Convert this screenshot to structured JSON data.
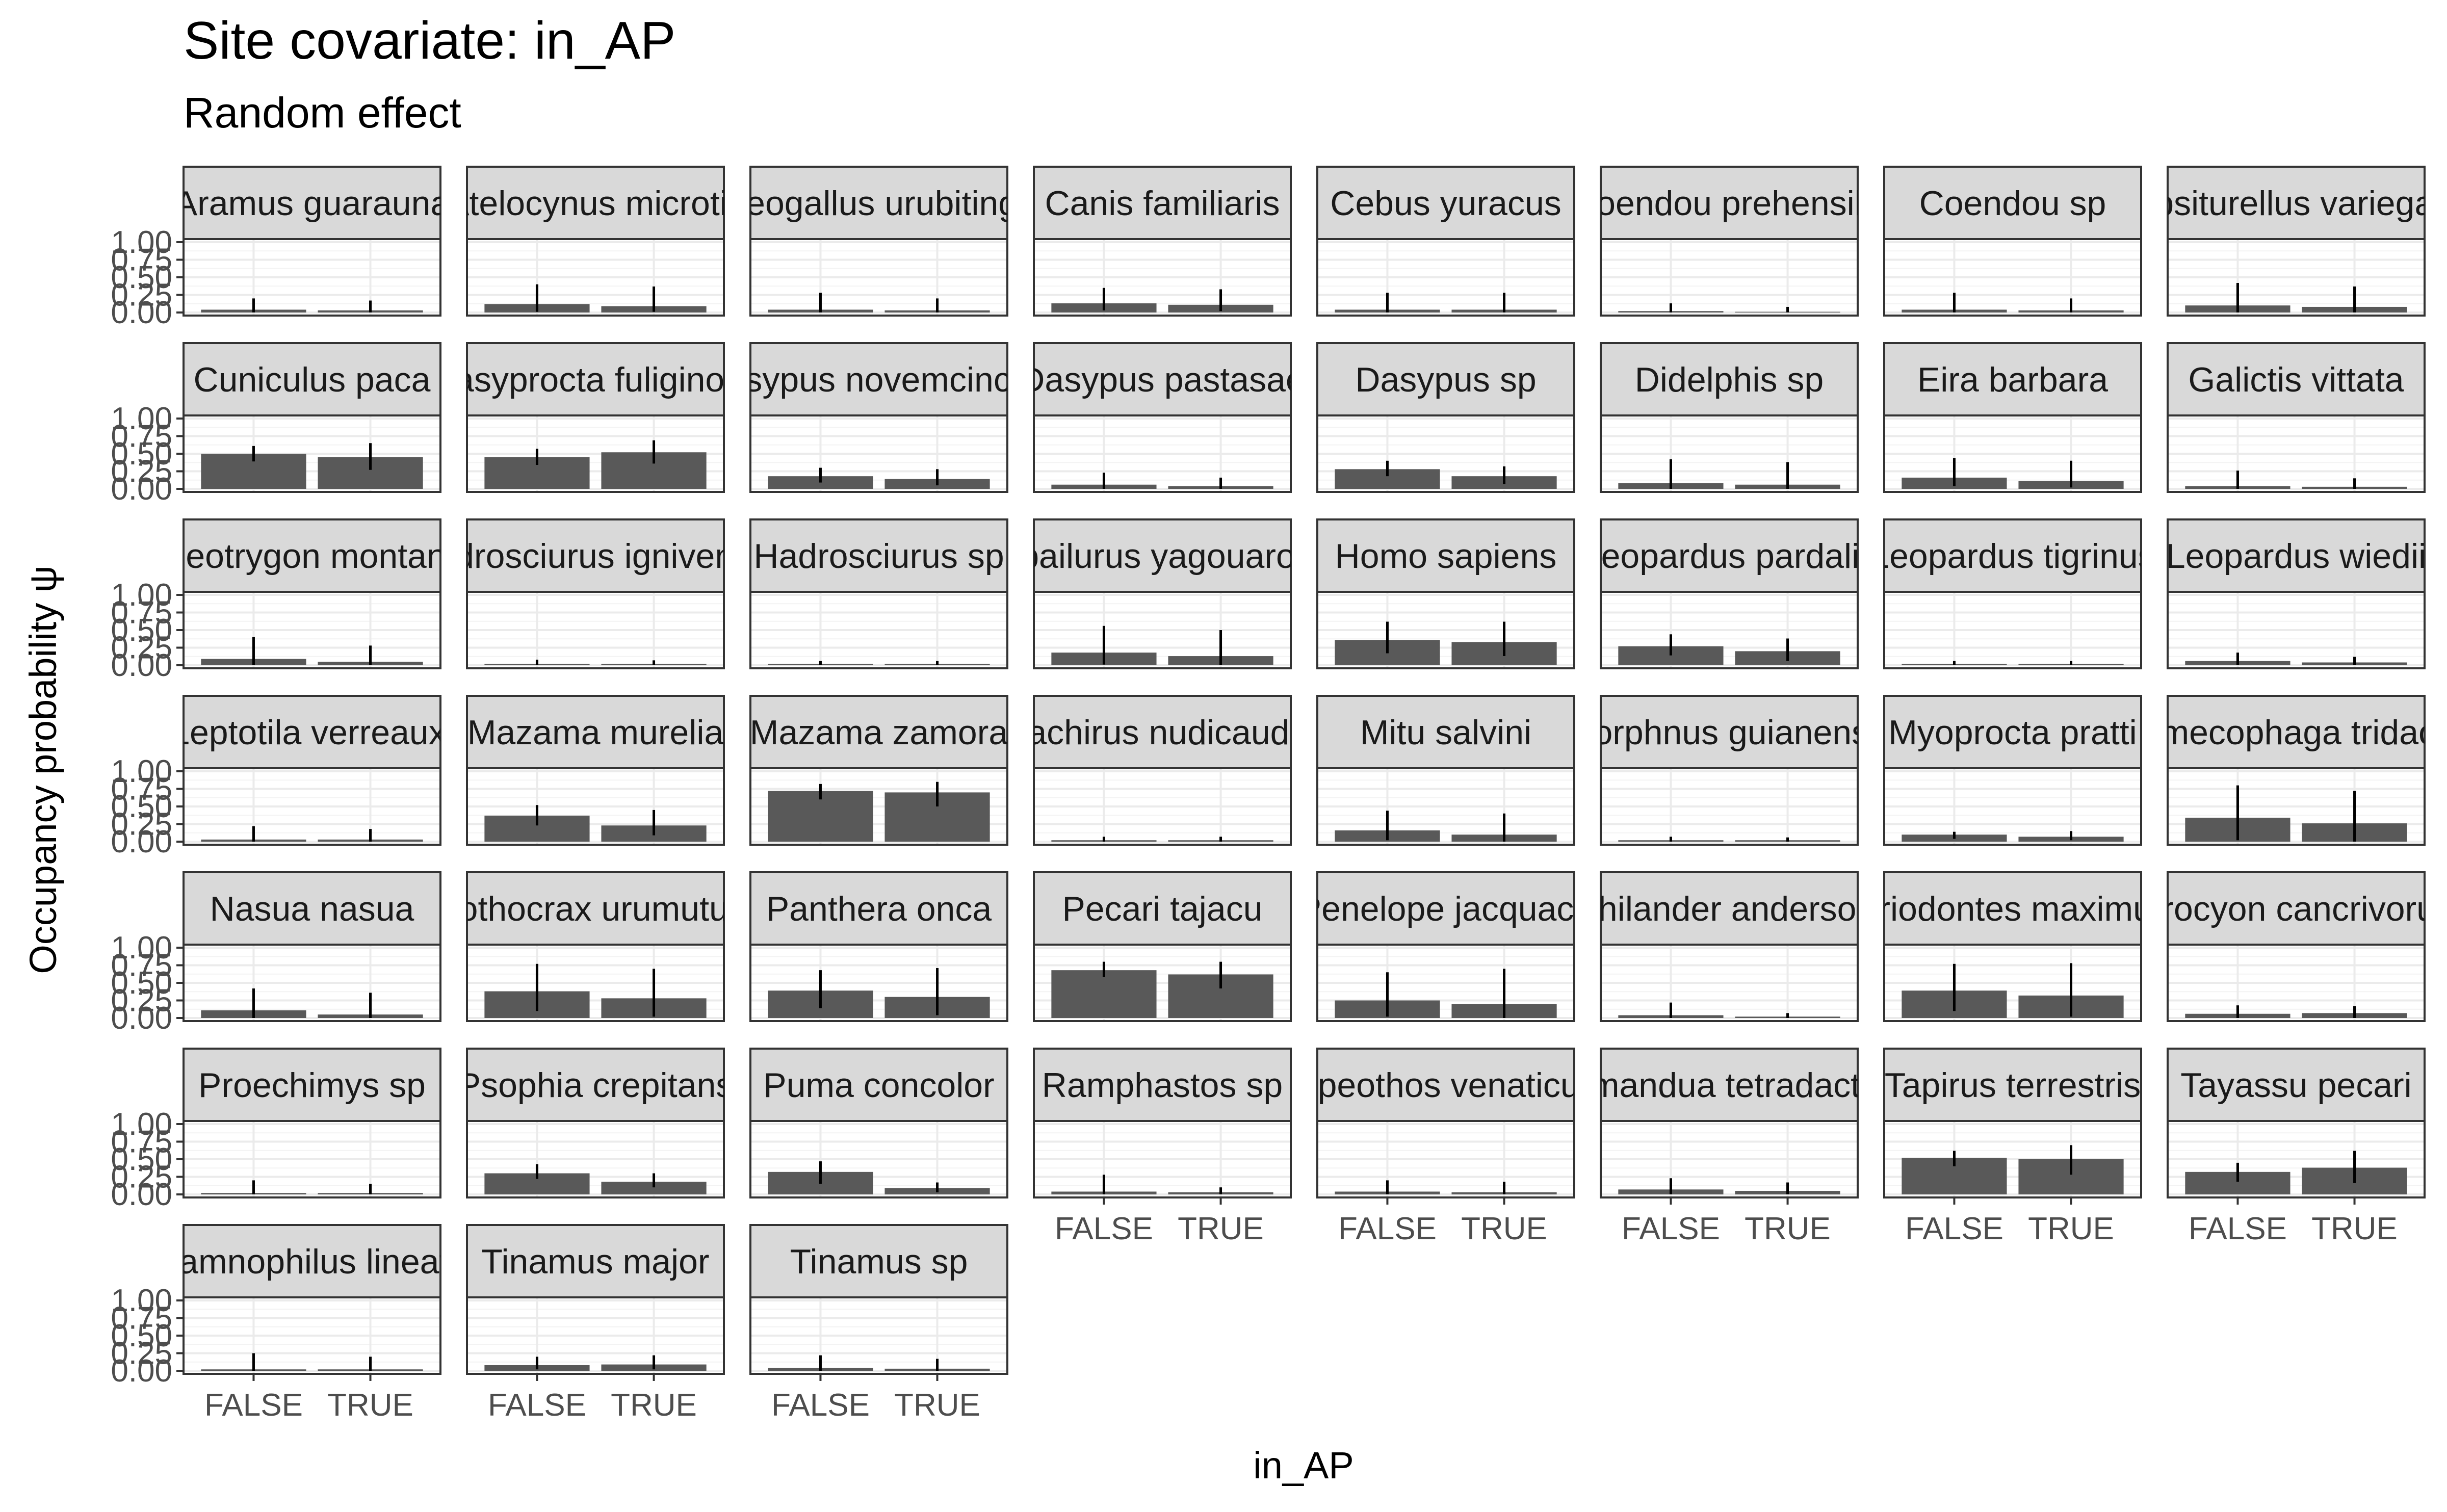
{
  "chart_data": {
    "type": "bar",
    "title": "Site covariate: in_AP",
    "subtitle": "Random effect",
    "xlabel": "in_AP",
    "ylabel": "Occupancy probability  ψ",
    "categories": [
      "FALSE",
      "TRUE"
    ],
    "yticks": [
      "0.00",
      "0.25",
      "0.50",
      "0.75",
      "1.00"
    ],
    "ylim": [
      0,
      1
    ],
    "grid": true,
    "error_bars": true,
    "facets": [
      {
        "label": "Aramus guarauna",
        "values": [
          0.04,
          0.03
        ],
        "lower": [
          0.0,
          0.0
        ],
        "upper": [
          0.2,
          0.17
        ]
      },
      {
        "label": "Atelocynus microtis",
        "values": [
          0.12,
          0.09
        ],
        "lower": [
          0.01,
          0.01
        ],
        "upper": [
          0.4,
          0.37
        ]
      },
      {
        "label": "Neogallus urubitinga",
        "values": [
          0.04,
          0.03
        ],
        "lower": [
          0.0,
          0.0
        ],
        "upper": [
          0.28,
          0.2
        ]
      },
      {
        "label": "Canis familiaris",
        "values": [
          0.13,
          0.11
        ],
        "lower": [
          0.03,
          0.02
        ],
        "upper": [
          0.35,
          0.33
        ]
      },
      {
        "label": "Cebus yuracus",
        "values": [
          0.04,
          0.04
        ],
        "lower": [
          0.0,
          0.0
        ],
        "upper": [
          0.28,
          0.28
        ]
      },
      {
        "label": "Coendou prehensilis",
        "values": [
          0.02,
          0.01
        ],
        "lower": [
          0.0,
          0.0
        ],
        "upper": [
          0.13,
          0.08
        ]
      },
      {
        "label": "Coendou sp",
        "values": [
          0.04,
          0.03
        ],
        "lower": [
          0.0,
          0.0
        ],
        "upper": [
          0.28,
          0.2
        ]
      },
      {
        "label": "Eupsiturellus variegatus",
        "values": [
          0.1,
          0.08
        ],
        "lower": [
          0.0,
          0.0
        ],
        "upper": [
          0.42,
          0.37
        ]
      },
      {
        "label": "Cuniculus paca",
        "values": [
          0.5,
          0.45
        ],
        "lower": [
          0.39,
          0.27
        ],
        "upper": [
          0.61,
          0.65
        ]
      },
      {
        "label": "Dasyprocta fuliginosa",
        "values": [
          0.45,
          0.52
        ],
        "lower": [
          0.34,
          0.36
        ],
        "upper": [
          0.57,
          0.69
        ]
      },
      {
        "label": "Dasypus novemcinctus",
        "values": [
          0.18,
          0.14
        ],
        "lower": [
          0.09,
          0.05
        ],
        "upper": [
          0.3,
          0.28
        ]
      },
      {
        "label": "Dasypus pastasae",
        "values": [
          0.06,
          0.04
        ],
        "lower": [
          0.0,
          0.0
        ],
        "upper": [
          0.23,
          0.16
        ]
      },
      {
        "label": "Dasypus sp",
        "values": [
          0.28,
          0.18
        ],
        "lower": [
          0.18,
          0.07
        ],
        "upper": [
          0.4,
          0.32
        ]
      },
      {
        "label": "Didelphis sp",
        "values": [
          0.08,
          0.06
        ],
        "lower": [
          0.0,
          0.0
        ],
        "upper": [
          0.42,
          0.38
        ]
      },
      {
        "label": "Eira barbara",
        "values": [
          0.16,
          0.11
        ],
        "lower": [
          0.04,
          0.02
        ],
        "upper": [
          0.44,
          0.4
        ]
      },
      {
        "label": "Galictis vittata",
        "values": [
          0.04,
          0.03
        ],
        "lower": [
          0.0,
          0.0
        ],
        "upper": [
          0.26,
          0.15
        ]
      },
      {
        "label": "Geotrygon montana",
        "values": [
          0.09,
          0.05
        ],
        "lower": [
          0.0,
          0.0
        ],
        "upper": [
          0.4,
          0.28
        ]
      },
      {
        "label": "Hadrosciurus igniventris",
        "values": [
          0.02,
          0.02
        ],
        "lower": [
          0.0,
          0.0
        ],
        "upper": [
          0.08,
          0.07
        ]
      },
      {
        "label": "Hadrosciurus sp",
        "values": [
          0.02,
          0.02
        ],
        "lower": [
          0.0,
          0.0
        ],
        "upper": [
          0.06,
          0.06
        ]
      },
      {
        "label": "Herpailurus yagouaroundi",
        "values": [
          0.18,
          0.13
        ],
        "lower": [
          0.01,
          0.0
        ],
        "upper": [
          0.56,
          0.5
        ]
      },
      {
        "label": "Homo sapiens",
        "values": [
          0.36,
          0.33
        ],
        "lower": [
          0.17,
          0.13
        ],
        "upper": [
          0.62,
          0.62
        ]
      },
      {
        "label": "Leopardus pardalis",
        "values": [
          0.27,
          0.2
        ],
        "lower": [
          0.14,
          0.06
        ],
        "upper": [
          0.44,
          0.38
        ]
      },
      {
        "label": "Leopardus tigrinus",
        "values": [
          0.02,
          0.02
        ],
        "lower": [
          0.0,
          0.0
        ],
        "upper": [
          0.06,
          0.06
        ]
      },
      {
        "label": "Leopardus wiedii",
        "values": [
          0.06,
          0.04
        ],
        "lower": [
          0.0,
          0.0
        ],
        "upper": [
          0.18,
          0.12
        ]
      },
      {
        "label": "Leptotila verreauxi",
        "values": [
          0.03,
          0.03
        ],
        "lower": [
          0.0,
          0.0
        ],
        "upper": [
          0.22,
          0.18
        ]
      },
      {
        "label": "Mazama murelia",
        "values": [
          0.37,
          0.23
        ],
        "lower": [
          0.23,
          0.09
        ],
        "upper": [
          0.52,
          0.45
        ]
      },
      {
        "label": "Mazama zamora",
        "values": [
          0.72,
          0.7
        ],
        "lower": [
          0.6,
          0.5
        ],
        "upper": [
          0.82,
          0.85
        ]
      },
      {
        "label": "Metachirus nudicaudatus",
        "values": [
          0.02,
          0.02
        ],
        "lower": [
          0.0,
          0.0
        ],
        "upper": [
          0.07,
          0.07
        ]
      },
      {
        "label": "Mitu salvini",
        "values": [
          0.16,
          0.1
        ],
        "lower": [
          0.02,
          0.0
        ],
        "upper": [
          0.44,
          0.4
        ]
      },
      {
        "label": "Morphnus guianensis",
        "values": [
          0.02,
          0.02
        ],
        "lower": [
          0.0,
          0.0
        ],
        "upper": [
          0.07,
          0.06
        ]
      },
      {
        "label": "Myoprocta pratti",
        "values": [
          0.1,
          0.07
        ],
        "lower": [
          0.04,
          0.02
        ],
        "upper": [
          0.14,
          0.15
        ]
      },
      {
        "label": "Myrmecophaga tridactyla",
        "values": [
          0.34,
          0.26
        ],
        "lower": [
          0.02,
          0.0
        ],
        "upper": [
          0.8,
          0.72
        ]
      },
      {
        "label": "Nasua nasua",
        "values": [
          0.11,
          0.05
        ],
        "lower": [
          0.0,
          0.0
        ],
        "upper": [
          0.42,
          0.36
        ]
      },
      {
        "label": "Nothocrax urumutum",
        "values": [
          0.38,
          0.28
        ],
        "lower": [
          0.1,
          0.02
        ],
        "upper": [
          0.77,
          0.7
        ]
      },
      {
        "label": "Panthera onca",
        "values": [
          0.39,
          0.3
        ],
        "lower": [
          0.14,
          0.04
        ],
        "upper": [
          0.68,
          0.71
        ]
      },
      {
        "label": "Pecari tajacu",
        "values": [
          0.68,
          0.62
        ],
        "lower": [
          0.58,
          0.42
        ],
        "upper": [
          0.8,
          0.8
        ]
      },
      {
        "label": "Penelope jacquacu",
        "values": [
          0.25,
          0.2
        ],
        "lower": [
          0.02,
          0.0
        ],
        "upper": [
          0.65,
          0.7
        ]
      },
      {
        "label": "Philander andersoni",
        "values": [
          0.04,
          0.02
        ],
        "lower": [
          0.0,
          0.0
        ],
        "upper": [
          0.22,
          0.07
        ]
      },
      {
        "label": "Priodontes maximus",
        "values": [
          0.39,
          0.32
        ],
        "lower": [
          0.1,
          0.02
        ],
        "upper": [
          0.77,
          0.78
        ]
      },
      {
        "label": "Procyon cancrivorus",
        "values": [
          0.06,
          0.07
        ],
        "lower": [
          0.0,
          0.0
        ],
        "upper": [
          0.18,
          0.17
        ]
      },
      {
        "label": "Proechimys sp",
        "values": [
          0.02,
          0.02
        ],
        "lower": [
          0.0,
          0.0
        ],
        "upper": [
          0.2,
          0.15
        ]
      },
      {
        "label": "Psophia crepitans",
        "values": [
          0.3,
          0.18
        ],
        "lower": [
          0.22,
          0.1
        ],
        "upper": [
          0.43,
          0.3
        ]
      },
      {
        "label": "Puma concolor",
        "values": [
          0.32,
          0.09
        ],
        "lower": [
          0.15,
          0.03
        ],
        "upper": [
          0.47,
          0.17
        ]
      },
      {
        "label": "Ramphastos sp",
        "values": [
          0.04,
          0.03
        ],
        "lower": [
          0.0,
          0.0
        ],
        "upper": [
          0.28,
          0.1
        ]
      },
      {
        "label": "Speothos venaticus",
        "values": [
          0.04,
          0.03
        ],
        "lower": [
          0.0,
          0.0
        ],
        "upper": [
          0.2,
          0.18
        ]
      },
      {
        "label": "Tamandua tetradactyla",
        "values": [
          0.07,
          0.05
        ],
        "lower": [
          0.0,
          0.0
        ],
        "upper": [
          0.23,
          0.17
        ]
      },
      {
        "label": "Tapirus terrestris",
        "values": [
          0.52,
          0.5
        ],
        "lower": [
          0.4,
          0.28
        ],
        "upper": [
          0.62,
          0.7
        ]
      },
      {
        "label": "Tayassu pecari",
        "values": [
          0.32,
          0.38
        ],
        "lower": [
          0.18,
          0.16
        ],
        "upper": [
          0.45,
          0.62
        ]
      },
      {
        "label": "Thamnophilus lineatus",
        "values": [
          0.02,
          0.02
        ],
        "lower": [
          0.0,
          0.0
        ],
        "upper": [
          0.25,
          0.2
        ]
      },
      {
        "label": "Tinamus major",
        "values": [
          0.08,
          0.09
        ],
        "lower": [
          0.02,
          0.02
        ],
        "upper": [
          0.2,
          0.22
        ]
      },
      {
        "label": "Tinamus sp",
        "values": [
          0.04,
          0.03
        ],
        "lower": [
          0.0,
          0.0
        ],
        "upper": [
          0.22,
          0.17
        ]
      }
    ]
  }
}
